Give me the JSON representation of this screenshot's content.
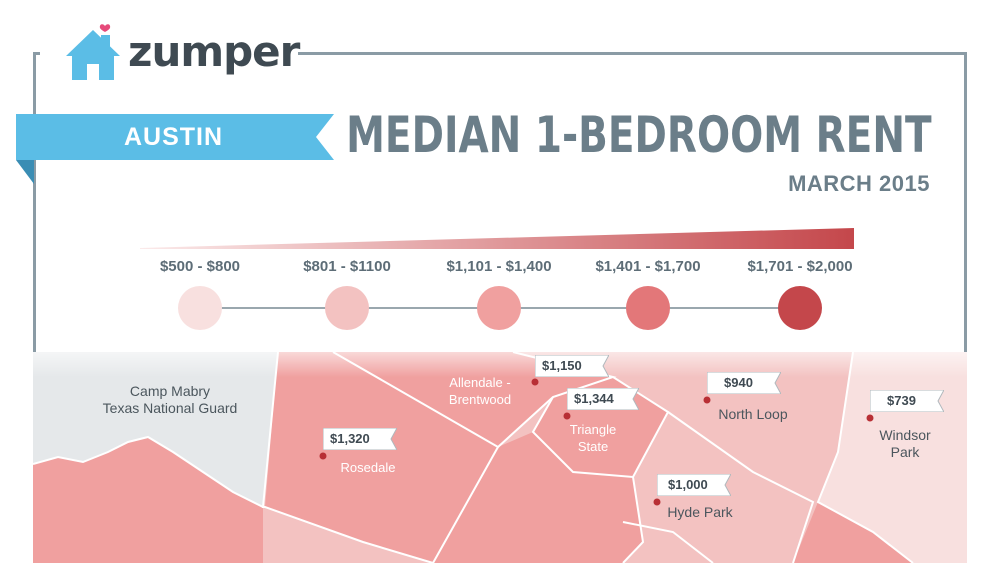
{
  "brand": {
    "name": "zumper"
  },
  "city": "AUSTIN",
  "title": "MEDIAN 1-BEDROOM RENT",
  "subtitle": "MARCH 2015",
  "colors": {
    "frame": "#8a9ba5",
    "banner": "#5bbde6",
    "banner_dark": "#3a8db4",
    "title": "#6b7e89",
    "marker": "#b82f35"
  },
  "legend": [
    {
      "label": "$500 - $800",
      "color": "#f8e0df"
    },
    {
      "label": "$801 - $1100",
      "color": "#f3c2c1"
    },
    {
      "label": "$1,101 - $1,400",
      "color": "#f0a09f"
    },
    {
      "label": "$1,401 - $1,700",
      "color": "#e37779"
    },
    {
      "label": "$1,701 - $2,000",
      "color": "#c4474b"
    }
  ],
  "neighborhoods": [
    {
      "name": "Camp Mabry\nTexas National Guard",
      "price": ""
    },
    {
      "name": "Rosedale",
      "price": "$1,320"
    },
    {
      "name": "Allendale -\nBrentwood",
      "price": "$1,150"
    },
    {
      "name": "Triangle\nState",
      "price": "$1,344"
    },
    {
      "name": "North Loop",
      "price": "$940"
    },
    {
      "name": "Hyde Park",
      "price": "$1,000"
    },
    {
      "name": "Windsor\nPark",
      "price": "$739"
    }
  ]
}
